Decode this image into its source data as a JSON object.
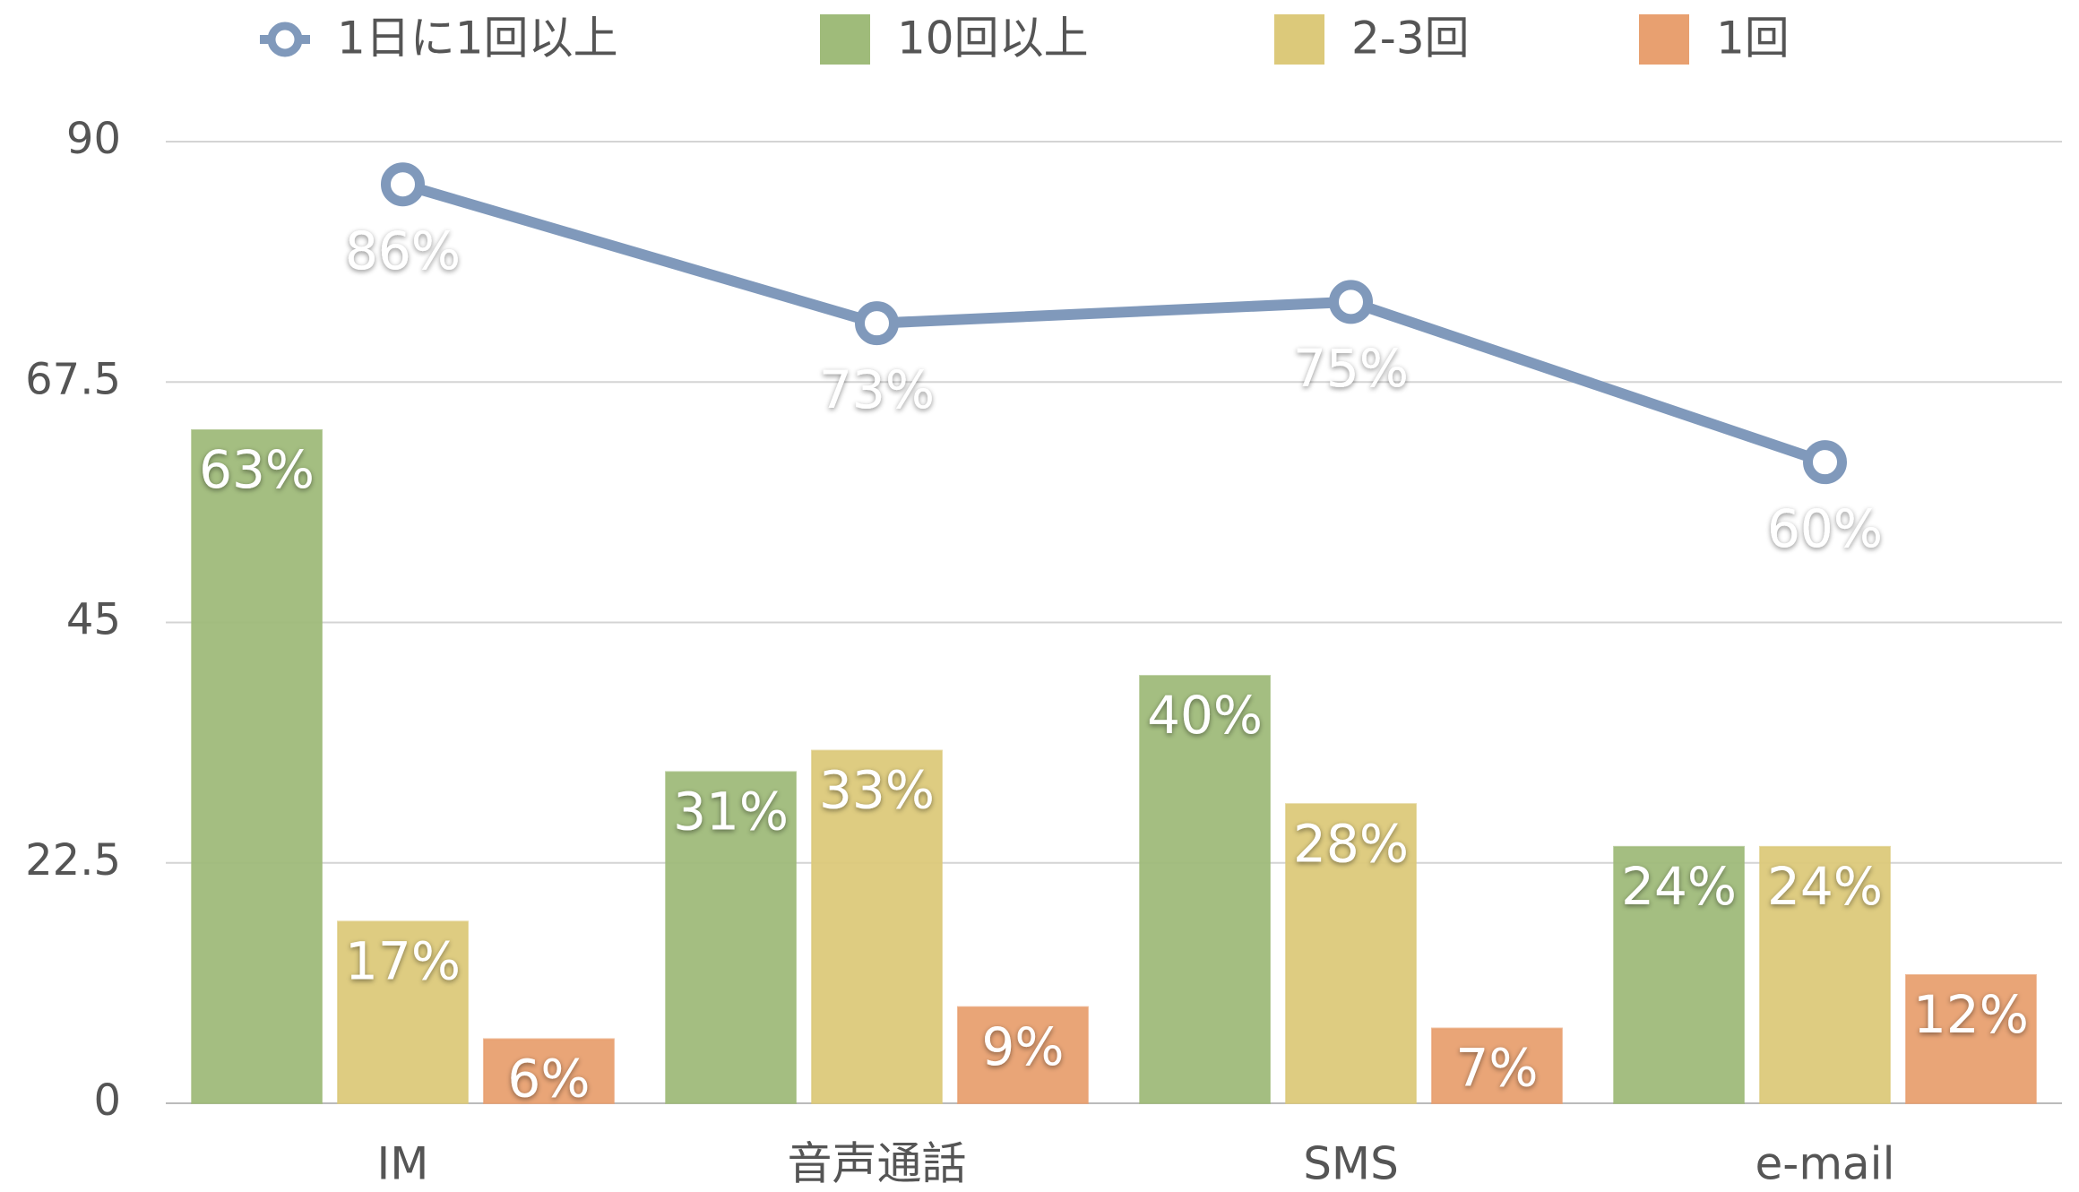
{
  "chart_data": {
    "type": "bar",
    "categories": [
      "IM",
      "音声通話",
      "SMS",
      "e-mail"
    ],
    "series": [
      {
        "name": "1日に1回以上",
        "type": "line",
        "color": "#8099bb",
        "values": [
          86,
          73,
          75,
          60
        ],
        "value_labels": [
          "86%",
          "73%",
          "75%",
          "60%"
        ]
      },
      {
        "name": "10回以上",
        "color": "#9fbb7a",
        "values": [
          63,
          31,
          40,
          24
        ],
        "value_labels": [
          "63%",
          "31%",
          "40%",
          "24%"
        ]
      },
      {
        "name": "2-3回",
        "color": "#dcc97a",
        "values": [
          17,
          33,
          28,
          24
        ],
        "value_labels": [
          "17%",
          "33%",
          "28%",
          "24%"
        ]
      },
      {
        "name": "1回",
        "color": "#e8a070",
        "values": [
          6,
          9,
          7,
          12
        ],
        "value_labels": [
          "6%",
          "9%",
          "7%",
          "12%"
        ]
      }
    ],
    "ylim": [
      0,
      90
    ],
    "yticks": [
      0,
      22.5,
      45,
      67.5,
      90
    ],
    "grid": true,
    "legend": "top"
  }
}
